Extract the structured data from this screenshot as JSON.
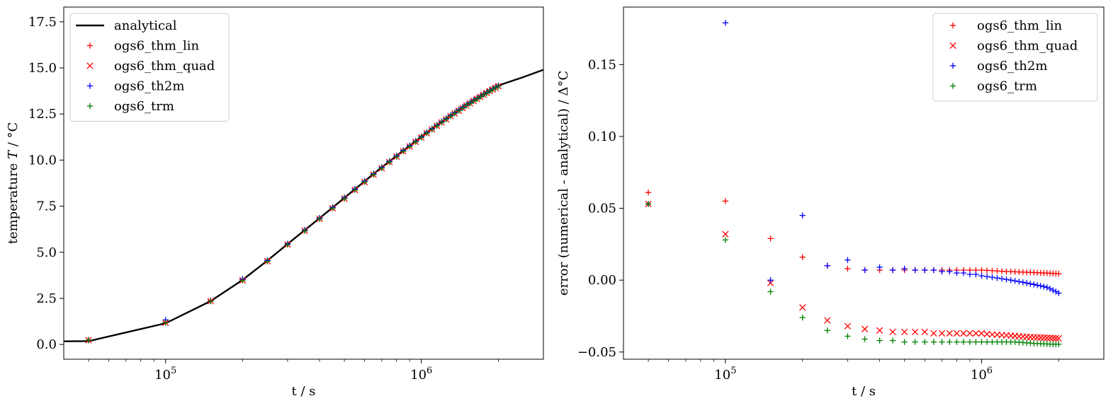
{
  "chart_data": [
    {
      "type": "line",
      "xlabel": "t / s",
      "ylabel_prefix": "temperature ",
      "ylabel_var": "T",
      "ylabel_suffix": " / °C",
      "xscale": "log",
      "xlim": [
        40000,
        3000000
      ],
      "ylim": [
        -0.8,
        18.3
      ],
      "yticks": [
        0.0,
        2.5,
        5.0,
        7.5,
        10.0,
        12.5,
        15.0,
        17.5
      ],
      "ytick_labels": [
        "0.0",
        "2.5",
        "5.0",
        "7.5",
        "10.0",
        "12.5",
        "15.0",
        "17.5"
      ],
      "xticks": [
        {
          "value": 100000,
          "base": "10",
          "exp": "5"
        },
        {
          "value": 1000000,
          "base": "10",
          "exp": "6"
        }
      ],
      "legend_position": "upper-left",
      "series": [
        {
          "name": "analytical",
          "style": "line",
          "color": "#000000",
          "x": [
            40000,
            50000,
            100000,
            150000,
            200000,
            250000,
            300000,
            350000,
            400000,
            450000,
            500000,
            550000,
            600000,
            650000,
            700000,
            750000,
            800000,
            850000,
            900000,
            950000,
            1000000,
            1050000,
            1100000,
            1150000,
            1200000,
            1250000,
            1300000,
            1350000,
            1400000,
            1450000,
            1500000,
            1550000,
            1600000,
            1650000,
            1700000,
            1750000,
            1800000,
            1850000,
            1900000,
            1950000,
            2000000,
            2500000,
            3000000
          ],
          "y": [
            0.17,
            0.18,
            1.15,
            2.35,
            3.5,
            4.55,
            5.45,
            6.2,
            6.85,
            7.43,
            7.95,
            8.42,
            8.85,
            9.25,
            9.6,
            9.93,
            10.23,
            10.52,
            10.78,
            11.03,
            11.27,
            11.5,
            11.7,
            11.9,
            12.08,
            12.25,
            12.42,
            12.57,
            12.72,
            12.86,
            13.0,
            13.12,
            13.25,
            13.36,
            13.47,
            13.58,
            13.68,
            13.78,
            13.87,
            13.96,
            14.05,
            14.5,
            14.9
          ]
        },
        {
          "name": "ogs6_thm_lin",
          "style": "marker",
          "marker": "plus",
          "color": "#ff0000",
          "x": [
            50000,
            100000,
            150000,
            200000,
            250000,
            300000,
            350000,
            400000,
            450000,
            500000,
            550000,
            600000,
            650000,
            700000,
            750000,
            800000,
            850000,
            900000,
            950000,
            1000000,
            1050000,
            1100000,
            1150000,
            1200000,
            1250000,
            1300000,
            1350000,
            1400000,
            1450000,
            1500000,
            1550000,
            1600000,
            1650000,
            1700000,
            1750000,
            1800000,
            1850000,
            1900000,
            1950000,
            2000000
          ],
          "y": [
            0.24,
            1.21,
            2.38,
            3.52,
            4.56,
            5.46,
            6.21,
            6.86,
            7.44,
            7.96,
            8.43,
            8.86,
            9.26,
            9.61,
            9.94,
            10.24,
            10.53,
            10.79,
            11.04,
            11.28,
            11.51,
            11.71,
            11.91,
            12.09,
            12.26,
            12.43,
            12.58,
            12.73,
            12.87,
            13.01,
            13.13,
            13.26,
            13.37,
            13.48,
            13.59,
            13.69,
            13.79,
            13.88,
            13.97,
            14.05
          ]
        },
        {
          "name": "ogs6_thm_quad",
          "style": "marker",
          "marker": "x",
          "color": "#ff0000",
          "x": [
            50000,
            100000,
            150000,
            200000,
            250000,
            300000,
            350000,
            400000,
            450000,
            500000,
            550000,
            600000,
            650000,
            700000,
            750000,
            800000,
            850000,
            900000,
            950000,
            1000000,
            1050000,
            1100000,
            1150000,
            1200000,
            1250000,
            1300000,
            1350000,
            1400000,
            1450000,
            1500000,
            1550000,
            1600000,
            1650000,
            1700000,
            1750000,
            1800000,
            1850000,
            1900000,
            1950000,
            2000000
          ],
          "y": [
            0.23,
            1.18,
            2.35,
            3.48,
            4.52,
            5.42,
            6.17,
            6.82,
            7.39,
            7.91,
            8.38,
            8.81,
            9.21,
            9.56,
            9.89,
            10.19,
            10.48,
            10.74,
            10.99,
            11.23,
            11.46,
            11.66,
            11.86,
            12.04,
            12.21,
            12.38,
            12.53,
            12.68,
            12.82,
            12.96,
            13.08,
            13.21,
            13.32,
            13.43,
            13.54,
            13.64,
            13.74,
            13.83,
            13.92,
            14.01
          ]
        },
        {
          "name": "ogs6_th2m",
          "style": "marker",
          "marker": "plus",
          "color": "#0000ff",
          "x": [
            50000,
            100000,
            150000,
            200000,
            250000,
            300000,
            350000,
            400000,
            450000,
            500000,
            550000,
            600000,
            650000,
            700000,
            750000,
            800000,
            850000,
            900000,
            950000,
            1000000,
            1050000,
            1100000,
            1150000,
            1200000,
            1250000,
            1300000,
            1350000,
            1400000,
            1450000,
            1500000,
            1550000,
            1600000,
            1650000,
            1700000,
            1750000,
            1800000,
            1850000,
            1900000,
            1950000,
            2000000
          ],
          "y": [
            0.23,
            1.33,
            2.35,
            3.55,
            4.56,
            5.46,
            6.21,
            6.86,
            7.44,
            7.96,
            8.43,
            8.86,
            9.26,
            9.61,
            9.94,
            10.24,
            10.53,
            10.79,
            11.03,
            11.27,
            11.5,
            11.7,
            11.9,
            12.08,
            12.25,
            12.42,
            12.57,
            12.72,
            12.86,
            12.99,
            13.12,
            13.24,
            13.35,
            13.46,
            13.57,
            13.67,
            13.77,
            13.86,
            13.95,
            14.04
          ]
        },
        {
          "name": "ogs6_trm",
          "style": "marker",
          "marker": "plus",
          "color": "#008000",
          "x": [
            50000,
            100000,
            150000,
            200000,
            250000,
            300000,
            350000,
            400000,
            450000,
            500000,
            550000,
            600000,
            650000,
            700000,
            750000,
            800000,
            850000,
            900000,
            950000,
            1000000,
            1050000,
            1100000,
            1150000,
            1200000,
            1250000,
            1300000,
            1350000,
            1400000,
            1450000,
            1500000,
            1550000,
            1600000,
            1650000,
            1700000,
            1750000,
            1800000,
            1850000,
            1900000,
            1950000,
            2000000
          ],
          "y": [
            0.23,
            1.18,
            2.34,
            3.47,
            4.51,
            5.41,
            6.16,
            6.81,
            7.39,
            7.91,
            8.38,
            8.81,
            9.21,
            9.56,
            9.89,
            10.19,
            10.48,
            10.74,
            10.99,
            11.23,
            11.46,
            11.66,
            11.86,
            12.04,
            12.21,
            12.38,
            12.53,
            12.68,
            12.82,
            12.96,
            13.08,
            13.21,
            13.32,
            13.43,
            13.54,
            13.64,
            13.74,
            13.83,
            13.92,
            14.01
          ]
        }
      ]
    },
    {
      "type": "scatter",
      "xlabel": "t / s",
      "ylabel": "error (numerical - analytical) / Δ°C",
      "xscale": "log",
      "xlim": [
        40000,
        3000000
      ],
      "ylim": [
        -0.055,
        0.19
      ],
      "yticks": [
        -0.05,
        0.0,
        0.05,
        0.1,
        0.15
      ],
      "ytick_labels": [
        "−0.05",
        "0.00",
        "0.05",
        "0.10",
        "0.15"
      ],
      "xticks": [
        {
          "value": 100000,
          "base": "10",
          "exp": "5"
        },
        {
          "value": 1000000,
          "base": "10",
          "exp": "6"
        }
      ],
      "legend_position": "upper-right",
      "series": [
        {
          "name": "ogs6_thm_lin",
          "marker": "plus",
          "color": "#ff0000",
          "x": [
            50000,
            100000,
            150000,
            200000,
            250000,
            300000,
            350000,
            400000,
            450000,
            500000,
            550000,
            600000,
            650000,
            700000,
            750000,
            800000,
            850000,
            900000,
            950000,
            1000000,
            1050000,
            1100000,
            1150000,
            1200000,
            1250000,
            1300000,
            1350000,
            1400000,
            1450000,
            1500000,
            1550000,
            1600000,
            1650000,
            1700000,
            1750000,
            1800000,
            1850000,
            1900000,
            1950000,
            2000000
          ],
          "y": [
            0.061,
            0.055,
            0.029,
            0.016,
            0.01,
            0.008,
            0.007,
            0.007,
            0.007,
            0.007,
            0.007,
            0.007,
            0.007,
            0.007,
            0.007,
            0.007,
            0.007,
            0.007,
            0.007,
            0.007,
            0.0068,
            0.0066,
            0.0064,
            0.0062,
            0.006,
            0.006,
            0.0058,
            0.0057,
            0.0056,
            0.0055,
            0.0054,
            0.0053,
            0.0052,
            0.0051,
            0.005,
            0.0049,
            0.0048,
            0.0047,
            0.0046,
            0.0045
          ]
        },
        {
          "name": "ogs6_thm_quad",
          "marker": "x",
          "color": "#ff0000",
          "x": [
            50000,
            100000,
            150000,
            200000,
            250000,
            300000,
            350000,
            400000,
            450000,
            500000,
            550000,
            600000,
            650000,
            700000,
            750000,
            800000,
            850000,
            900000,
            950000,
            1000000,
            1050000,
            1100000,
            1150000,
            1200000,
            1250000,
            1300000,
            1350000,
            1400000,
            1450000,
            1500000,
            1550000,
            1600000,
            1650000,
            1700000,
            1750000,
            1800000,
            1850000,
            1900000,
            1950000,
            2000000
          ],
          "y": [
            0.053,
            0.032,
            -0.002,
            -0.019,
            -0.028,
            -0.032,
            -0.034,
            -0.035,
            -0.036,
            -0.036,
            -0.036,
            -0.036,
            -0.037,
            -0.037,
            -0.037,
            -0.037,
            -0.037,
            -0.037,
            -0.037,
            -0.037,
            -0.0375,
            -0.0378,
            -0.038,
            -0.0382,
            -0.0384,
            -0.0386,
            -0.0388,
            -0.039,
            -0.0392,
            -0.0394,
            -0.0396,
            -0.0397,
            -0.0398,
            -0.0399,
            -0.04,
            -0.0401,
            -0.0402,
            -0.0403,
            -0.0404,
            -0.0405
          ]
        },
        {
          "name": "ogs6_th2m",
          "marker": "plus",
          "color": "#0000ff",
          "x": [
            50000,
            100000,
            150000,
            200000,
            250000,
            300000,
            350000,
            400000,
            450000,
            500000,
            550000,
            600000,
            650000,
            700000,
            750000,
            800000,
            850000,
            900000,
            950000,
            1000000,
            1050000,
            1100000,
            1150000,
            1200000,
            1250000,
            1300000,
            1350000,
            1400000,
            1450000,
            1500000,
            1550000,
            1600000,
            1650000,
            1700000,
            1750000,
            1800000,
            1850000,
            1900000,
            1950000,
            2000000
          ],
          "y": [
            0.053,
            0.179,
            0.0,
            0.045,
            0.01,
            0.014,
            0.007,
            0.009,
            0.007,
            0.008,
            0.007,
            0.007,
            0.007,
            0.006,
            0.006,
            0.005,
            0.005,
            0.004,
            0.004,
            0.003,
            0.0025,
            0.002,
            0.0015,
            0.001,
            0.0005,
            0.0,
            -0.0005,
            -0.001,
            -0.0015,
            -0.002,
            -0.0025,
            -0.003,
            -0.0035,
            -0.004,
            -0.0045,
            -0.005,
            -0.006,
            -0.007,
            -0.008,
            -0.009
          ]
        },
        {
          "name": "ogs6_trm",
          "marker": "plus",
          "color": "#008000",
          "x": [
            50000,
            100000,
            150000,
            200000,
            250000,
            300000,
            350000,
            400000,
            450000,
            500000,
            550000,
            600000,
            650000,
            700000,
            750000,
            800000,
            850000,
            900000,
            950000,
            1000000,
            1050000,
            1100000,
            1150000,
            1200000,
            1250000,
            1300000,
            1350000,
            1400000,
            1450000,
            1500000,
            1550000,
            1600000,
            1650000,
            1700000,
            1750000,
            1800000,
            1850000,
            1900000,
            1950000,
            2000000
          ],
          "y": [
            0.053,
            0.028,
            -0.008,
            -0.026,
            -0.035,
            -0.039,
            -0.041,
            -0.042,
            -0.042,
            -0.043,
            -0.043,
            -0.043,
            -0.043,
            -0.043,
            -0.043,
            -0.043,
            -0.043,
            -0.043,
            -0.043,
            -0.043,
            -0.043,
            -0.043,
            -0.043,
            -0.043,
            -0.043,
            -0.043,
            -0.043,
            -0.0432,
            -0.0434,
            -0.0436,
            -0.0438,
            -0.044,
            -0.0441,
            -0.0442,
            -0.0443,
            -0.0444,
            -0.0445,
            -0.0445,
            -0.0446,
            -0.0446
          ]
        }
      ]
    }
  ]
}
